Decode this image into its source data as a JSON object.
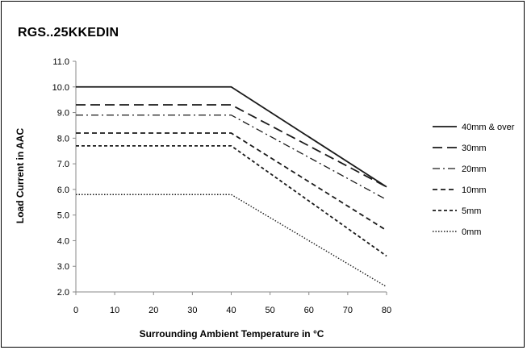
{
  "chart_data": {
    "type": "line",
    "title": "RGS..25KKEDIN",
    "xlabel": "Surrounding Ambient Temperature in °C",
    "ylabel": "Load Current in AAC",
    "xlim": [
      0,
      80
    ],
    "ylim": [
      2.0,
      11.0
    ],
    "x_ticks": [
      "0",
      "10",
      "20",
      "30",
      "40",
      "50",
      "60",
      "70",
      "80"
    ],
    "y_ticks": [
      "2.0",
      "3.0",
      "4.0",
      "5.0",
      "6.0",
      "7.0",
      "8.0",
      "9.0",
      "10.0",
      "11.0"
    ],
    "grid": false,
    "legend_position": "right",
    "series": [
      {
        "name": "40mm & over",
        "dash": "solid",
        "x": [
          0,
          40,
          80
        ],
        "y": [
          10.0,
          10.0,
          6.1
        ]
      },
      {
        "name": "30mm",
        "dash": "long-dash",
        "x": [
          0,
          40,
          80
        ],
        "y": [
          9.3,
          9.3,
          6.1
        ]
      },
      {
        "name": "20mm",
        "dash": "dash-dot",
        "x": [
          0,
          40,
          80
        ],
        "y": [
          8.9,
          8.9,
          5.6
        ]
      },
      {
        "name": "10mm",
        "dash": "dash",
        "x": [
          0,
          40,
          80
        ],
        "y": [
          8.2,
          8.2,
          4.4
        ]
      },
      {
        "name": "5mm",
        "dash": "short-dash",
        "x": [
          0,
          40,
          80
        ],
        "y": [
          7.7,
          7.7,
          3.4
        ]
      },
      {
        "name": "0mm",
        "dash": "dotted",
        "x": [
          0,
          40,
          80
        ],
        "y": [
          5.8,
          5.8,
          2.2
        ]
      }
    ],
    "line_color": "#1a1a1a"
  }
}
